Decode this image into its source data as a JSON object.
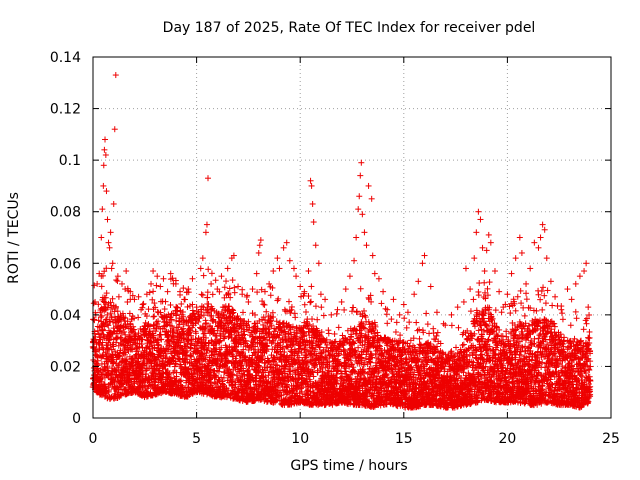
{
  "chart_data": {
    "type": "scatter",
    "title": "Day 187 of 2025, Rate Of TEC Index for receiver pdel",
    "xlabel": "GPS time / hours",
    "ylabel": "ROTI / TECUs",
    "xlim": [
      0,
      25
    ],
    "ylim": [
      0,
      0.14
    ],
    "grid": true,
    "marker": "+",
    "marker_color": "#ee0000",
    "x_ticks": [
      {
        "value": 0,
        "label": "0"
      },
      {
        "value": 5,
        "label": "5"
      },
      {
        "value": 10,
        "label": "10"
      },
      {
        "value": 15,
        "label": "15"
      },
      {
        "value": 20,
        "label": "20"
      },
      {
        "value": 25,
        "label": "25"
      }
    ],
    "y_ticks": [
      {
        "value": 0,
        "label": "0"
      },
      {
        "value": 0.02,
        "label": "0.02"
      },
      {
        "value": 0.04,
        "label": "0.04"
      },
      {
        "value": 0.06,
        "label": "0.06"
      },
      {
        "value": 0.08,
        "label": "0.08"
      },
      {
        "value": 0.1,
        "label": "0.1"
      },
      {
        "value": 0.12,
        "label": "0.12"
      },
      {
        "value": 0.14,
        "label": "0.14"
      }
    ],
    "series": [
      {
        "name": "ROTI",
        "points": [
          [
            0.1,
            0.045
          ],
          [
            0.2,
            0.052
          ],
          [
            0.3,
            0.056
          ],
          [
            0.35,
            0.041
          ],
          [
            0.4,
            0.07
          ],
          [
            0.45,
            0.081
          ],
          [
            0.5,
            0.09
          ],
          [
            0.52,
            0.098
          ],
          [
            0.55,
            0.104
          ],
          [
            0.58,
            0.108
          ],
          [
            0.62,
            0.102
          ],
          [
            0.65,
            0.088
          ],
          [
            0.7,
            0.077
          ],
          [
            0.75,
            0.068
          ],
          [
            0.8,
            0.066
          ],
          [
            0.85,
            0.072
          ],
          [
            0.9,
            0.058
          ],
          [
            0.95,
            0.06
          ],
          [
            1.0,
            0.083
          ],
          [
            1.05,
            0.112
          ],
          [
            1.1,
            0.133
          ],
          [
            1.2,
            0.055
          ],
          [
            1.25,
            0.047
          ],
          [
            1.4,
            0.052
          ],
          [
            1.55,
            0.05
          ],
          [
            1.6,
            0.057
          ],
          [
            1.8,
            0.049
          ],
          [
            2.0,
            0.046
          ],
          [
            2.2,
            0.047
          ],
          [
            2.4,
            0.044
          ],
          [
            2.6,
            0.048
          ],
          [
            2.8,
            0.052
          ],
          [
            2.9,
            0.057
          ],
          [
            3.1,
            0.055
          ],
          [
            3.25,
            0.051
          ],
          [
            3.4,
            0.054
          ],
          [
            3.6,
            0.049
          ],
          [
            3.75,
            0.056
          ],
          [
            4.0,
            0.052
          ],
          [
            4.2,
            0.049
          ],
          [
            4.4,
            0.046
          ],
          [
            4.6,
            0.05
          ],
          [
            4.8,
            0.054
          ],
          [
            5.0,
            0.043
          ],
          [
            5.2,
            0.058
          ],
          [
            5.3,
            0.062
          ],
          [
            5.45,
            0.072
          ],
          [
            5.5,
            0.075
          ],
          [
            5.55,
            0.093
          ],
          [
            5.7,
            0.052
          ],
          [
            6.0,
            0.05
          ],
          [
            6.2,
            0.055
          ],
          [
            6.5,
            0.058
          ],
          [
            6.7,
            0.062
          ],
          [
            6.8,
            0.063
          ],
          [
            7.0,
            0.051
          ],
          [
            7.2,
            0.048
          ],
          [
            7.5,
            0.045
          ],
          [
            7.7,
            0.05
          ],
          [
            7.9,
            0.056
          ],
          [
            8.0,
            0.064
          ],
          [
            8.05,
            0.067
          ],
          [
            8.1,
            0.069
          ],
          [
            8.3,
            0.049
          ],
          [
            8.5,
            0.052
          ],
          [
            8.7,
            0.057
          ],
          [
            8.9,
            0.062
          ],
          [
            9.0,
            0.058
          ],
          [
            9.2,
            0.066
          ],
          [
            9.35,
            0.068
          ],
          [
            9.5,
            0.061
          ],
          [
            9.7,
            0.058
          ],
          [
            9.8,
            0.055
          ],
          [
            10.0,
            0.051
          ],
          [
            10.2,
            0.049
          ],
          [
            10.4,
            0.057
          ],
          [
            10.5,
            0.092
          ],
          [
            10.55,
            0.09
          ],
          [
            10.6,
            0.083
          ],
          [
            10.65,
            0.076
          ],
          [
            10.75,
            0.067
          ],
          [
            10.9,
            0.06
          ],
          [
            11.0,
            0.048
          ],
          [
            11.2,
            0.046
          ],
          [
            11.5,
            0.04
          ],
          [
            11.8,
            0.042
          ],
          [
            12.0,
            0.045
          ],
          [
            12.2,
            0.05
          ],
          [
            12.4,
            0.055
          ],
          [
            12.6,
            0.061
          ],
          [
            12.7,
            0.07
          ],
          [
            12.8,
            0.081
          ],
          [
            12.85,
            0.086
          ],
          [
            12.9,
            0.094
          ],
          [
            12.95,
            0.099
          ],
          [
            13.0,
            0.079
          ],
          [
            13.1,
            0.072
          ],
          [
            13.2,
            0.067
          ],
          [
            13.3,
            0.09
          ],
          [
            13.45,
            0.085
          ],
          [
            13.5,
            0.063
          ],
          [
            13.6,
            0.056
          ],
          [
            13.8,
            0.054
          ],
          [
            14.0,
            0.049
          ],
          [
            14.2,
            0.042
          ],
          [
            14.5,
            0.046
          ],
          [
            14.8,
            0.04
          ],
          [
            15.0,
            0.044
          ],
          [
            15.2,
            0.041
          ],
          [
            15.5,
            0.048
          ],
          [
            15.7,
            0.053
          ],
          [
            15.9,
            0.06
          ],
          [
            16.0,
            0.063
          ],
          [
            16.3,
            0.051
          ],
          [
            16.6,
            0.041
          ],
          [
            17.0,
            0.036
          ],
          [
            17.3,
            0.04
          ],
          [
            17.6,
            0.043
          ],
          [
            17.9,
            0.045
          ],
          [
            18.0,
            0.058
          ],
          [
            18.2,
            0.05
          ],
          [
            18.4,
            0.062
          ],
          [
            18.5,
            0.072
          ],
          [
            18.6,
            0.08
          ],
          [
            18.7,
            0.077
          ],
          [
            18.8,
            0.066
          ],
          [
            18.9,
            0.057
          ],
          [
            19.0,
            0.065
          ],
          [
            19.1,
            0.071
          ],
          [
            19.2,
            0.068
          ],
          [
            19.4,
            0.057
          ],
          [
            19.6,
            0.049
          ],
          [
            19.8,
            0.043
          ],
          [
            20.0,
            0.048
          ],
          [
            20.2,
            0.056
          ],
          [
            20.4,
            0.062
          ],
          [
            20.6,
            0.07
          ],
          [
            20.7,
            0.064
          ],
          [
            20.9,
            0.052
          ],
          [
            21.1,
            0.058
          ],
          [
            21.3,
            0.068
          ],
          [
            21.5,
            0.066
          ],
          [
            21.6,
            0.07
          ],
          [
            21.7,
            0.075
          ],
          [
            21.8,
            0.073
          ],
          [
            21.9,
            0.062
          ],
          [
            22.1,
            0.053
          ],
          [
            22.3,
            0.047
          ],
          [
            22.6,
            0.042
          ],
          [
            22.9,
            0.05
          ],
          [
            23.1,
            0.046
          ],
          [
            23.3,
            0.052
          ],
          [
            23.5,
            0.055
          ],
          [
            23.7,
            0.057
          ],
          [
            23.8,
            0.06
          ],
          [
            23.9,
            0.043
          ]
        ],
        "envelope": {
          "x": [
            0,
            0.5,
            1,
            1.5,
            2,
            2.5,
            3,
            3.5,
            4,
            4.5,
            5,
            5.5,
            6,
            6.5,
            7,
            7.5,
            8,
            8.5,
            9,
            9.5,
            10,
            10.5,
            11,
            11.5,
            12,
            12.5,
            13,
            13.5,
            14,
            14.5,
            15,
            15.5,
            16,
            16.5,
            17,
            17.5,
            18,
            18.5,
            19,
            19.5,
            20,
            20.5,
            21,
            21.5,
            22,
            22.5,
            23,
            23.5,
            24
          ],
          "low": [
            0.011,
            0.008,
            0.007,
            0.009,
            0.01,
            0.008,
            0.009,
            0.01,
            0.009,
            0.008,
            0.01,
            0.009,
            0.008,
            0.008,
            0.007,
            0.006,
            0.007,
            0.006,
            0.005,
            0.005,
            0.006,
            0.005,
            0.005,
            0.005,
            0.006,
            0.005,
            0.005,
            0.004,
            0.005,
            0.005,
            0.004,
            0.004,
            0.005,
            0.005,
            0.004,
            0.004,
            0.005,
            0.006,
            0.007,
            0.006,
            0.006,
            0.006,
            0.005,
            0.005,
            0.006,
            0.005,
            0.005,
            0.004,
            0.006
          ],
          "high": [
            0.04,
            0.048,
            0.046,
            0.04,
            0.035,
            0.036,
            0.042,
            0.04,
            0.044,
            0.038,
            0.042,
            0.047,
            0.042,
            0.044,
            0.04,
            0.036,
            0.038,
            0.04,
            0.038,
            0.036,
            0.035,
            0.04,
            0.032,
            0.03,
            0.03,
            0.034,
            0.04,
            0.038,
            0.032,
            0.03,
            0.03,
            0.028,
            0.03,
            0.028,
            0.025,
            0.026,
            0.03,
            0.042,
            0.045,
            0.036,
            0.032,
            0.038,
            0.036,
            0.038,
            0.04,
            0.033,
            0.03,
            0.03,
            0.032
          ]
        }
      }
    ]
  }
}
